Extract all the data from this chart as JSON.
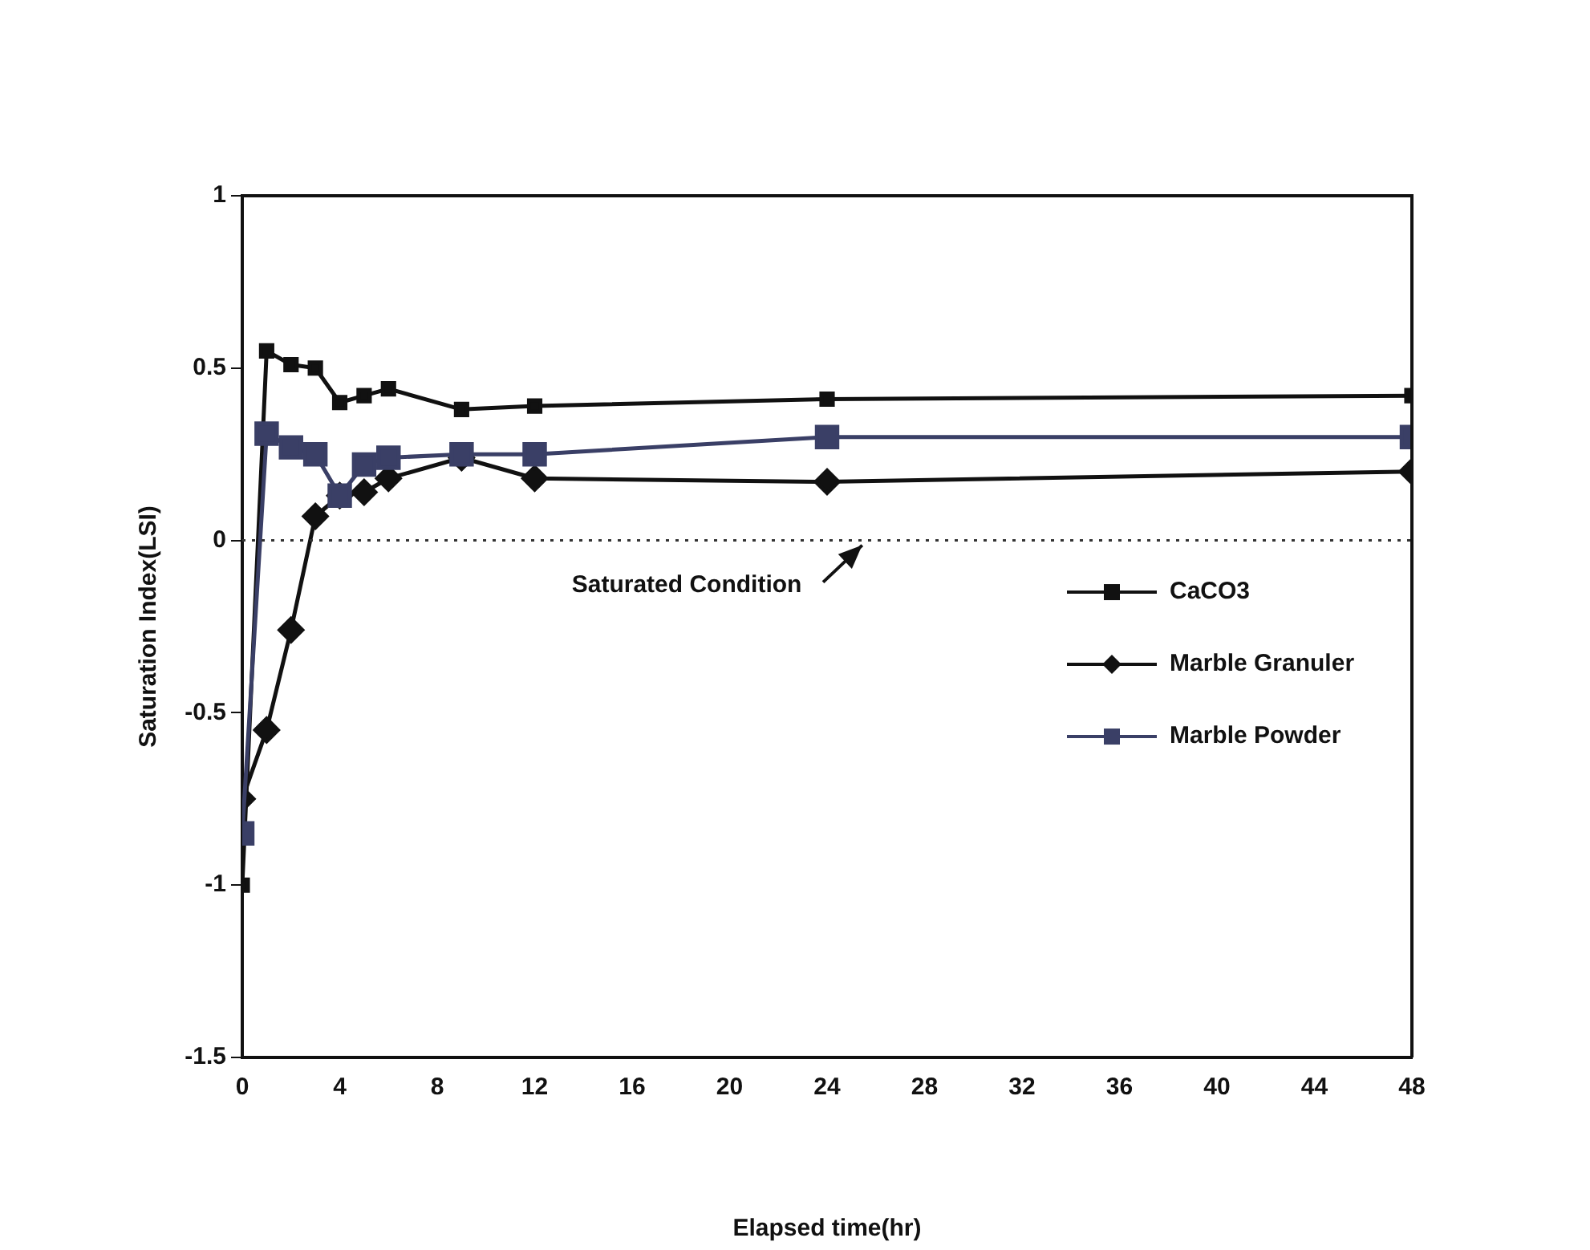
{
  "chart_data": {
    "type": "line",
    "xlabel": "Elapsed time(hr)",
    "ylabel": "Saturation Index(LSI)",
    "x": [
      0,
      1,
      2,
      3,
      4,
      5,
      6,
      9,
      12,
      24,
      48
    ],
    "series": [
      {
        "name": "CaCO3",
        "color": "#111111",
        "marker": "square",
        "values": [
          -1,
          0.55,
          0.51,
          0.5,
          0.4,
          0.42,
          0.44,
          0.38,
          0.39,
          0.41,
          0.42
        ]
      },
      {
        "name": "Marble Granuler",
        "color": "#111111",
        "marker": "diamond",
        "values": [
          -0.75,
          -0.55,
          -0.26,
          0.07,
          0.13,
          0.14,
          0.18,
          0.24,
          0.18,
          0.17,
          0.2
        ]
      },
      {
        "name": "Marble Powder",
        "color": "#3a3f66",
        "marker": "square",
        "values": [
          -0.85,
          0.31,
          0.27,
          0.25,
          0.13,
          0.22,
          0.24,
          0.25,
          0.25,
          0.3,
          0.3
        ]
      }
    ],
    "xlim": [
      0,
      48
    ],
    "xticks": [
      0,
      4,
      8,
      12,
      16,
      20,
      24,
      28,
      32,
      36,
      40,
      44,
      48
    ],
    "ylim": [
      -1.5,
      1
    ],
    "yticks": [
      -1.5,
      -1,
      -0.5,
      0,
      0.5,
      1
    ],
    "ref_lines": [
      {
        "axis": "y",
        "value": 0,
        "label": "Saturated Condition",
        "line_style": "dotted",
        "color": "#333333"
      }
    ],
    "grid": false,
    "legend": "right",
    "line_style": "solid"
  }
}
